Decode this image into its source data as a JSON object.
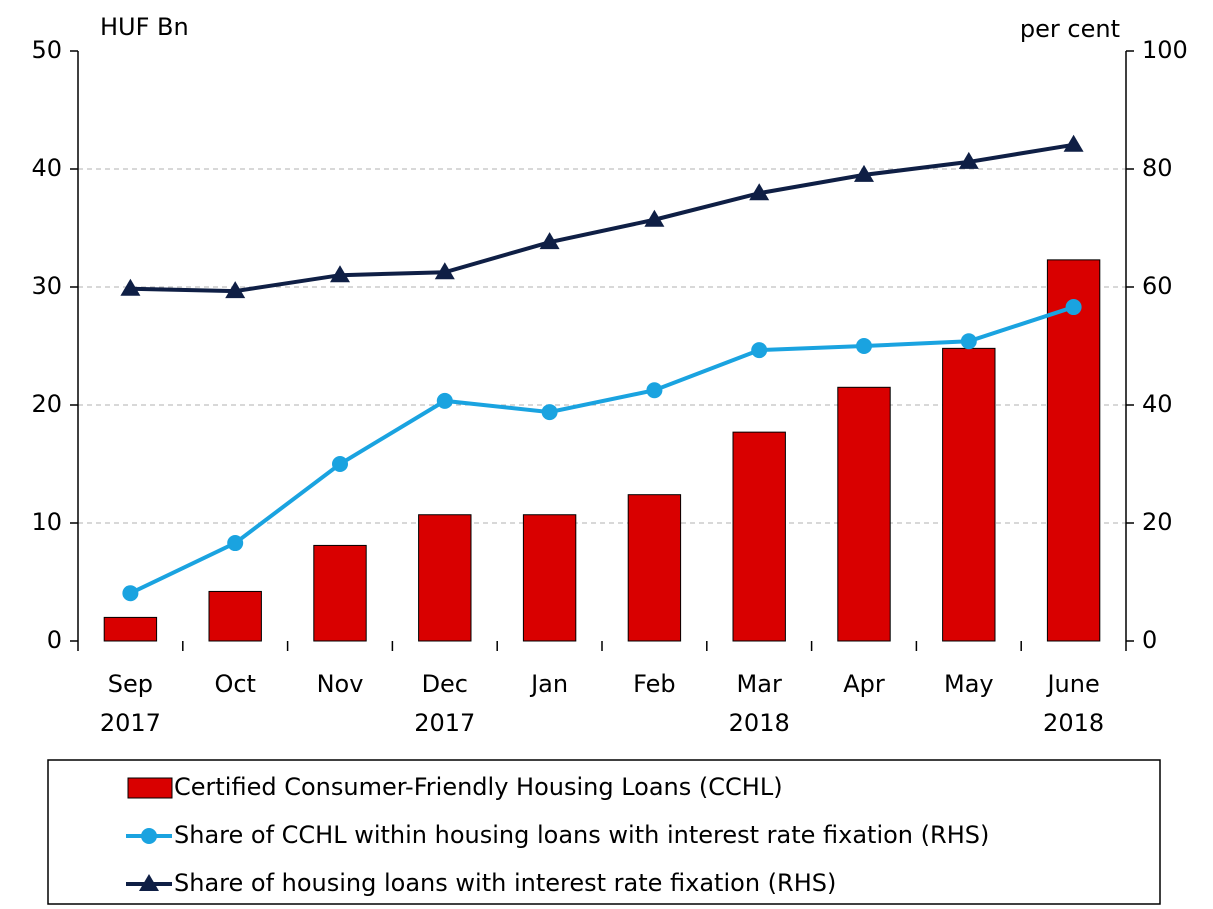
{
  "chart_data": {
    "type": "bar",
    "y_label": "HUF Bn",
    "y2_label": "per cent",
    "categories": [
      "Sep 2017",
      "Oct",
      "Nov",
      "Dec 2017",
      "Jan",
      "Feb",
      "Mar 2018",
      "Apr",
      "May",
      "June 2018"
    ],
    "series": [
      {
        "name": "Certified Consumer-Friendly Housing Loans (CCHL)",
        "type": "bar",
        "color": "#d90000",
        "values": [
          2.0,
          4.2,
          8.1,
          10.7,
          10.7,
          12.4,
          17.7,
          21.5,
          24.8,
          32.3
        ]
      },
      {
        "name": "Share of CCHL within housing loans with interest rate fixation (RHS)",
        "type": "line",
        "marker": "circle",
        "axis": "y2",
        "color": "#1aa3e0",
        "values": [
          8.1,
          16.6,
          30.0,
          40.7,
          38.8,
          42.5,
          49.3,
          50.0,
          50.8,
          56.6
        ]
      },
      {
        "name": "Share of housing loans with interest rate fixation (RHS)",
        "type": "line",
        "marker": "triangle",
        "axis": "y2",
        "color": "#0f1f45",
        "values": [
          59.7,
          59.3,
          62.0,
          62.5,
          67.6,
          71.4,
          75.9,
          79.0,
          81.2,
          84.1
        ]
      }
    ],
    "ylim": [
      0,
      50
    ],
    "yticks": [
      0,
      10,
      20,
      30,
      40,
      50
    ],
    "y2lim": [
      0,
      100
    ],
    "y2ticks": [
      0,
      20,
      40,
      60,
      80,
      100
    ],
    "grid": true
  }
}
